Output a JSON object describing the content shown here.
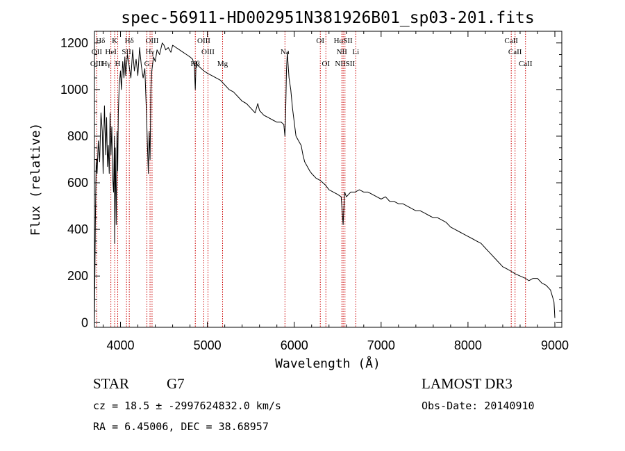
{
  "chart_data": {
    "type": "line",
    "title": "spec-56911-HD002951N381926B01_sp03-201.fits",
    "xlabel": "Wavelength (Å)",
    "ylabel": "Flux (relative)",
    "xlim": [
      3700,
      9080
    ],
    "ylim": [
      -20,
      1250
    ],
    "xticks": [
      4000,
      5000,
      6000,
      7000,
      8000,
      9000
    ],
    "yticks": [
      0,
      200,
      400,
      600,
      800,
      1000,
      1200
    ],
    "line_color": "#000000",
    "marker_color": "#cc0000",
    "spectrum": {
      "x": [
        3700,
        3710,
        3720,
        3730,
        3745,
        3760,
        3775,
        3790,
        3800,
        3815,
        3830,
        3840,
        3850,
        3860,
        3870,
        3880,
        3890,
        3900,
        3910,
        3920,
        3930,
        3933,
        3940,
        3950,
        3960,
        3968,
        3975,
        3985,
        4000,
        4010,
        4025,
        4040,
        4050,
        4060,
        4080,
        4100,
        4120,
        4140,
        4160,
        4180,
        4200,
        4220,
        4240,
        4260,
        4280,
        4300,
        4310,
        4320,
        4330,
        4340,
        4350,
        4360,
        4380,
        4400,
        4420,
        4450,
        4480,
        4500,
        4520,
        4550,
        4580,
        4600,
        4640,
        4680,
        4720,
        4760,
        4800,
        4830,
        4850,
        4861,
        4870,
        4880,
        4900,
        4930,
        4960,
        5000,
        5050,
        5100,
        5150,
        5200,
        5250,
        5300,
        5350,
        5400,
        5450,
        5500,
        5550,
        5580,
        5600,
        5650,
        5700,
        5750,
        5800,
        5850,
        5880,
        5893,
        5900,
        5910,
        5920,
        5940,
        5960,
        5980,
        6000,
        6020,
        6050,
        6080,
        6100,
        6120,
        6150,
        6180,
        6200,
        6250,
        6300,
        6330,
        6360,
        6400,
        6450,
        6500,
        6540,
        6563,
        6580,
        6600,
        6650,
        6700,
        6750,
        6800,
        6850,
        6900,
        6950,
        7000,
        7050,
        7100,
        7150,
        7200,
        7250,
        7300,
        7350,
        7400,
        7450,
        7500,
        7550,
        7600,
        7650,
        7700,
        7750,
        7800,
        7850,
        7900,
        7950,
        8000,
        8050,
        8100,
        8150,
        8200,
        8250,
        8300,
        8350,
        8400,
        8450,
        8498,
        8542,
        8600,
        8662,
        8700,
        8750,
        8800,
        8850,
        8900,
        8950,
        8990,
        9000
      ],
      "y": [
        0,
        420,
        700,
        640,
        780,
        690,
        900,
        820,
        640,
        930,
        720,
        880,
        670,
        760,
        640,
        900,
        720,
        840,
        620,
        560,
        800,
        340,
        750,
        420,
        820,
        650,
        900,
        1020,
        1080,
        1000,
        1120,
        1050,
        1140,
        1060,
        1150,
        1100,
        1050,
        1170,
        1080,
        1130,
        1060,
        1180,
        1100,
        1050,
        1090,
        880,
        760,
        640,
        820,
        700,
        1000,
        1080,
        1140,
        1120,
        1170,
        1150,
        1200,
        1190,
        1170,
        1180,
        1160,
        1190,
        1180,
        1170,
        1160,
        1150,
        1140,
        1130,
        1100,
        1000,
        1120,
        1110,
        1100,
        1090,
        1080,
        1070,
        1060,
        1050,
        1040,
        1020,
        1000,
        990,
        970,
        950,
        940,
        920,
        900,
        940,
        910,
        890,
        880,
        870,
        860,
        860,
        850,
        800,
        880,
        1080,
        1160,
        1050,
        1000,
        920,
        860,
        800,
        780,
        760,
        720,
        690,
        670,
        650,
        640,
        620,
        610,
        600,
        590,
        570,
        560,
        550,
        540,
        420,
        560,
        540,
        560,
        560,
        570,
        560,
        560,
        550,
        540,
        530,
        540,
        520,
        520,
        510,
        510,
        500,
        490,
        480,
        480,
        470,
        460,
        450,
        450,
        440,
        430,
        410,
        400,
        390,
        380,
        370,
        360,
        350,
        340,
        320,
        300,
        280,
        260,
        240,
        230,
        220,
        210,
        200,
        190,
        180,
        190,
        190,
        170,
        160,
        140,
        90,
        20
      ]
    },
    "lines": [
      {
        "label": "Hδ",
        "x": 3770,
        "row": 1,
        "plain": true
      },
      {
        "label": "K",
        "x": 3933,
        "row": 1
      },
      {
        "label": "Hδ",
        "x": 4101,
        "row": 1
      },
      {
        "label": "OIII",
        "x": 4363,
        "row": 1
      },
      {
        "label": "OIII",
        "x": 4959,
        "row": 1
      },
      {
        "label": "OI",
        "x": 6300,
        "row": 1
      },
      {
        "label": "HαSII",
        "x": 6563,
        "row": 1
      },
      {
        "label": "CaII",
        "x": 8498,
        "row": 1
      },
      {
        "label": "OII",
        "x": 3727,
        "row": 2
      },
      {
        "label": "HeI",
        "x": 3889,
        "row": 2
      },
      {
        "label": "SII",
        "x": 4069,
        "row": 2
      },
      {
        "label": "Hγ",
        "x": 4340,
        "row": 2
      },
      {
        "label": "OIII",
        "x": 5007,
        "row": 2
      },
      {
        "label": "Na",
        "x": 5893,
        "row": 2
      },
      {
        "label": "NII",
        "x": 6548,
        "row": 2
      },
      {
        "label": "Li",
        "x": 6708,
        "row": 2
      },
      {
        "label": "CaII",
        "x": 8542,
        "row": 2
      },
      {
        "label": "OIII",
        "x": 3727,
        "row": 3,
        "plain": true
      },
      {
        "label": "Hγ",
        "x": 3835,
        "row": 3,
        "plain": true
      },
      {
        "label": "H",
        "x": 3968,
        "row": 3
      },
      {
        "label": "G",
        "x": 4304,
        "row": 3
      },
      {
        "label": "Hβ",
        "x": 4861,
        "row": 3
      },
      {
        "label": "Mg",
        "x": 5175,
        "row": 3
      },
      {
        "label": "OI",
        "x": 6364,
        "row": 3
      },
      {
        "label": "NIISII",
        "x": 6584,
        "row": 3
      },
      {
        "label": "CaII",
        "x": 8662,
        "row": 3
      }
    ]
  },
  "info": {
    "star_label": "STAR",
    "spectral_type": "G7",
    "survey": "LAMOST DR3",
    "cz": "cz = 18.5 ± -2997624832.0 km/s",
    "obs_date": "Obs-Date: 20140910",
    "radec": "RA =   6.45006, DEC =  38.68957"
  }
}
